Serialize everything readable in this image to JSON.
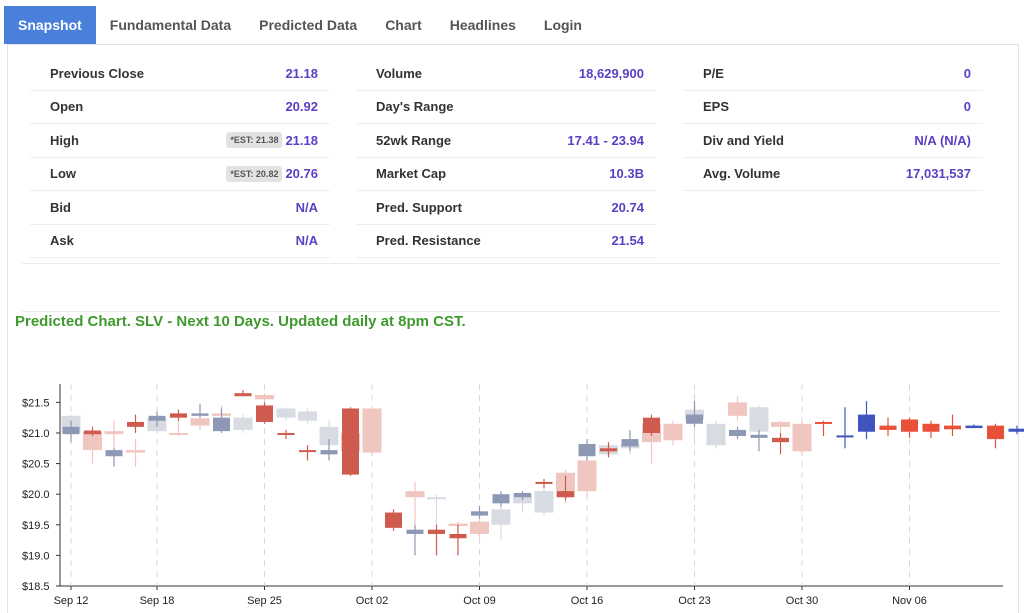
{
  "tabs": [
    {
      "label": "Snapshot",
      "active": true
    },
    {
      "label": "Fundamental Data"
    },
    {
      "label": "Predicted Data"
    },
    {
      "label": "Chart"
    },
    {
      "label": "Headlines"
    },
    {
      "label": "Login"
    }
  ],
  "snapshot": {
    "col1": [
      {
        "label": "Previous Close",
        "value": "21.18"
      },
      {
        "label": "Open",
        "value": "20.92"
      },
      {
        "label": "High",
        "est": "*EST: 21.38",
        "value": "21.18"
      },
      {
        "label": "Low",
        "est": "*EST: 20.82",
        "value": "20.76"
      },
      {
        "label": "Bid",
        "value": "N/A"
      },
      {
        "label": "Ask",
        "value": "N/A"
      }
    ],
    "col2": [
      {
        "label": "Volume",
        "value": "18,629,900"
      },
      {
        "label": "Day's Range",
        "value": ""
      },
      {
        "label": "52wk Range",
        "value": "17.41 - 23.94"
      },
      {
        "label": "Market Cap",
        "value": "10.3B"
      },
      {
        "label": "Pred. Support",
        "value": "20.74"
      },
      {
        "label": "Pred. Resistance",
        "value": "21.54"
      }
    ],
    "col3": [
      {
        "label": "P/E",
        "value": "0"
      },
      {
        "label": "EPS",
        "value": "0"
      },
      {
        "label": "Div and Yield",
        "value": "N/A (N/A)"
      },
      {
        "label": "Avg. Volume",
        "value": "17,031,537"
      }
    ]
  },
  "chart_title": "Predicted Chart. SLV - Next 10 Days. Updated daily at 8pm CST.",
  "colors": {
    "up_actual": "#8d99b4",
    "down_actual": "#cf5a4e",
    "up_light": "#d8dbe2",
    "down_light": "#f0c6c1",
    "up_pred": "#3f54bf",
    "down_pred": "#e8503a"
  },
  "chart_data": {
    "type": "candlestick",
    "ylim": [
      18.5,
      21.8
    ],
    "y_ticks": [
      "$18.5",
      "$19.0",
      "$19.5",
      "$20.0",
      "$20.5",
      "$21.0",
      "$21.5"
    ],
    "y_tick_values": [
      18.5,
      19.0,
      19.5,
      20.0,
      20.5,
      21.0,
      21.5
    ],
    "x_ticks": [
      {
        "label": "Sep 12",
        "index": 0
      },
      {
        "label": "Sep 18",
        "index": 4
      },
      {
        "label": "Sep 25",
        "index": 9
      },
      {
        "label": "Oct 02",
        "index": 14
      },
      {
        "label": "Oct 09",
        "index": 19
      },
      {
        "label": "Oct 16",
        "index": 24
      },
      {
        "label": "Oct 23",
        "index": 29
      },
      {
        "label": "Oct 30",
        "index": 34
      },
      {
        "label": "Nov 06",
        "index": 39
      }
    ],
    "n_slots": 43,
    "candles": [
      {
        "i": 0,
        "o": 20.98,
        "c": 21.1,
        "h": 21.2,
        "l": 20.85,
        "s": "up_actual"
      },
      {
        "i": 0,
        "o": 21.0,
        "c": 21.28,
        "h": 21.3,
        "l": 20.95,
        "s": "up_light"
      },
      {
        "i": 1,
        "o": 21.04,
        "c": 20.98,
        "h": 21.1,
        "l": 20.95,
        "s": "down_actual"
      },
      {
        "i": 1,
        "o": 21.02,
        "c": 20.72,
        "h": 21.05,
        "l": 20.5,
        "s": "down_light"
      },
      {
        "i": 2,
        "o": 20.62,
        "c": 20.72,
        "h": 20.75,
        "l": 20.45,
        "s": "up_actual"
      },
      {
        "i": 2,
        "o": 21.03,
        "c": 20.98,
        "h": 21.2,
        "l": 20.5,
        "s": "down_light"
      },
      {
        "i": 3,
        "o": 21.1,
        "c": 21.18,
        "h": 21.3,
        "l": 21.0,
        "s": "down_actual"
      },
      {
        "i": 3,
        "o": 20.72,
        "c": 20.68,
        "h": 20.9,
        "l": 20.45,
        "s": "down_light"
      },
      {
        "i": 4,
        "o": 21.2,
        "c": 21.28,
        "h": 21.35,
        "l": 21.1,
        "s": "up_actual"
      },
      {
        "i": 4,
        "o": 21.03,
        "c": 21.24,
        "h": 21.3,
        "l": 21.0,
        "s": "up_light"
      },
      {
        "i": 5,
        "o": 21.32,
        "c": 21.25,
        "h": 21.38,
        "l": 21.2,
        "s": "down_actual"
      },
      {
        "i": 5,
        "o": 21.0,
        "c": 21.0,
        "h": 21.3,
        "l": 20.95,
        "s": "down_light"
      },
      {
        "i": 6,
        "o": 21.28,
        "c": 21.32,
        "h": 21.48,
        "l": 21.25,
        "s": "up_actual"
      },
      {
        "i": 6,
        "o": 21.12,
        "c": 21.24,
        "h": 21.3,
        "l": 21.05,
        "s": "down_light"
      },
      {
        "i": 7,
        "o": 21.03,
        "c": 21.25,
        "h": 21.4,
        "l": 21.0,
        "s": "up_actual"
      },
      {
        "i": 7,
        "o": 21.32,
        "c": 21.28,
        "h": 21.45,
        "l": 21.25,
        "s": "down_light"
      },
      {
        "i": 8,
        "o": 21.6,
        "c": 21.65,
        "h": 21.7,
        "l": 21.6,
        "s": "down_actual"
      },
      {
        "i": 8,
        "o": 21.05,
        "c": 21.25,
        "h": 21.3,
        "l": 21.0,
        "s": "up_light"
      },
      {
        "i": 9,
        "o": 21.45,
        "c": 21.18,
        "h": 21.5,
        "l": 21.15,
        "s": "down_actual"
      },
      {
        "i": 9,
        "o": 21.55,
        "c": 21.62,
        "h": 21.65,
        "l": 21.5,
        "s": "down_light"
      },
      {
        "i": 10,
        "o": 20.98,
        "c": 21.0,
        "h": 21.05,
        "l": 20.9,
        "s": "down_actual"
      },
      {
        "i": 10,
        "o": 21.25,
        "c": 21.4,
        "h": 21.42,
        "l": 21.2,
        "s": "up_light"
      },
      {
        "i": 11,
        "o": 20.72,
        "c": 20.7,
        "h": 20.8,
        "l": 20.55,
        "s": "down_actual"
      },
      {
        "i": 11,
        "o": 21.2,
        "c": 21.35,
        "h": 21.4,
        "l": 21.15,
        "s": "up_light"
      },
      {
        "i": 12,
        "o": 20.65,
        "c": 20.72,
        "h": 20.9,
        "l": 20.55,
        "s": "up_actual"
      },
      {
        "i": 12,
        "o": 20.8,
        "c": 21.1,
        "h": 21.2,
        "l": 20.6,
        "s": "up_light"
      },
      {
        "i": 13,
        "o": 21.4,
        "c": 20.32,
        "h": 21.42,
        "l": 20.3,
        "s": "down_actual"
      },
      {
        "i": 13,
        "o": 21.0,
        "c": 20.7,
        "h": 21.3,
        "l": 20.6,
        "s": "down_light"
      },
      {
        "i": 14,
        "o": 21.4,
        "c": 20.68,
        "h": 21.42,
        "l": 20.65,
        "s": "down_light"
      },
      {
        "i": 15,
        "o": 19.7,
        "c": 19.45,
        "h": 19.75,
        "l": 19.4,
        "s": "down_actual"
      },
      {
        "i": 16,
        "o": 19.42,
        "c": 19.35,
        "h": 19.5,
        "l": 19.0,
        "s": "up_actual"
      },
      {
        "i": 16,
        "o": 20.05,
        "c": 19.95,
        "h": 20.2,
        "l": 19.4,
        "s": "down_light"
      },
      {
        "i": 17,
        "o": 19.42,
        "c": 19.35,
        "h": 19.5,
        "l": 19.0,
        "s": "down_actual"
      },
      {
        "i": 17,
        "o": 19.95,
        "c": 19.92,
        "h": 20.0,
        "l": 19.5,
        "s": "up_light"
      },
      {
        "i": 18,
        "o": 19.35,
        "c": 19.28,
        "h": 19.5,
        "l": 19.0,
        "s": "down_actual"
      },
      {
        "i": 18,
        "o": 19.52,
        "c": 19.48,
        "h": 19.55,
        "l": 19.4,
        "s": "down_light"
      },
      {
        "i": 19,
        "o": 19.65,
        "c": 19.72,
        "h": 19.8,
        "l": 19.6,
        "s": "up_actual"
      },
      {
        "i": 19,
        "o": 19.55,
        "c": 19.35,
        "h": 19.6,
        "l": 19.3,
        "s": "down_light"
      },
      {
        "i": 20,
        "o": 19.85,
        "c": 20.0,
        "h": 20.05,
        "l": 19.8,
        "s": "up_actual"
      },
      {
        "i": 20,
        "o": 19.5,
        "c": 19.75,
        "h": 19.8,
        "l": 19.25,
        "s": "up_light"
      },
      {
        "i": 21,
        "o": 19.95,
        "c": 20.02,
        "h": 20.05,
        "l": 19.9,
        "s": "up_actual"
      },
      {
        "i": 21,
        "o": 19.85,
        "c": 20.0,
        "h": 20.05,
        "l": 19.7,
        "s": "up_light"
      },
      {
        "i": 22,
        "o": 20.18,
        "c": 20.2,
        "h": 20.25,
        "l": 20.1,
        "s": "down_actual"
      },
      {
        "i": 22,
        "o": 19.7,
        "c": 20.05,
        "h": 20.1,
        "l": 19.65,
        "s": "up_light"
      },
      {
        "i": 23,
        "o": 20.05,
        "c": 19.95,
        "h": 20.3,
        "l": 19.9,
        "s": "down_actual"
      },
      {
        "i": 23,
        "o": 19.95,
        "c": 20.35,
        "h": 20.4,
        "l": 19.85,
        "s": "down_light"
      },
      {
        "i": 24,
        "o": 20.62,
        "c": 20.82,
        "h": 20.9,
        "l": 20.55,
        "s": "up_actual"
      },
      {
        "i": 24,
        "o": 20.05,
        "c": 20.55,
        "h": 20.6,
        "l": 19.95,
        "s": "down_light"
      },
      {
        "i": 25,
        "o": 20.75,
        "c": 20.7,
        "h": 20.85,
        "l": 20.6,
        "s": "down_actual"
      },
      {
        "i": 25,
        "o": 20.65,
        "c": 20.8,
        "h": 20.85,
        "l": 20.6,
        "s": "up_light"
      },
      {
        "i": 26,
        "o": 20.78,
        "c": 20.9,
        "h": 21.05,
        "l": 20.7,
        "s": "up_actual"
      },
      {
        "i": 26,
        "o": 20.75,
        "c": 20.82,
        "h": 20.85,
        "l": 20.65,
        "s": "up_light"
      },
      {
        "i": 27,
        "o": 21.25,
        "c": 21.0,
        "h": 21.3,
        "l": 20.95,
        "s": "down_actual"
      },
      {
        "i": 27,
        "o": 21.15,
        "c": 20.85,
        "h": 21.2,
        "l": 20.5,
        "s": "down_light"
      },
      {
        "i": 28,
        "o": 21.15,
        "c": 20.88,
        "h": 21.2,
        "l": 20.8,
        "s": "down_light"
      },
      {
        "i": 29,
        "o": 21.15,
        "c": 21.3,
        "h": 21.52,
        "l": 21.1,
        "s": "up_actual"
      },
      {
        "i": 29,
        "o": 21.38,
        "c": 21.22,
        "h": 21.65,
        "l": 20.9,
        "s": "up_light"
      },
      {
        "i": 30,
        "o": 20.8,
        "c": 21.15,
        "h": 21.2,
        "l": 20.75,
        "s": "up_light"
      },
      {
        "i": 31,
        "o": 21.05,
        "c": 20.95,
        "h": 21.1,
        "l": 20.9,
        "s": "up_actual"
      },
      {
        "i": 31,
        "o": 21.5,
        "c": 21.28,
        "h": 21.6,
        "l": 21.2,
        "s": "down_light"
      },
      {
        "i": 32,
        "o": 20.92,
        "c": 20.97,
        "h": 21.05,
        "l": 20.7,
        "s": "up_actual"
      },
      {
        "i": 32,
        "o": 21.02,
        "c": 21.42,
        "h": 21.45,
        "l": 21.0,
        "s": "up_light"
      },
      {
        "i": 33,
        "o": 20.92,
        "c": 20.85,
        "h": 21.0,
        "l": 20.65,
        "s": "down_actual"
      },
      {
        "i": 33,
        "o": 21.18,
        "c": 21.1,
        "h": 21.2,
        "l": 20.9,
        "s": "down_light"
      },
      {
        "i": 34,
        "o": 21.15,
        "c": 20.7,
        "h": 21.2,
        "l": 20.65,
        "s": "down_light"
      },
      {
        "i": 35,
        "o": 21.18,
        "c": 21.15,
        "h": 21.2,
        "l": 20.95,
        "s": "down_pred"
      },
      {
        "i": 36,
        "o": 20.93,
        "c": 20.96,
        "h": 21.42,
        "l": 20.75,
        "s": "up_pred"
      },
      {
        "i": 37,
        "o": 21.02,
        "c": 21.3,
        "h": 21.52,
        "l": 20.9,
        "s": "up_pred"
      },
      {
        "i": 38,
        "o": 21.12,
        "c": 21.05,
        "h": 21.25,
        "l": 20.95,
        "s": "down_pred"
      },
      {
        "i": 39,
        "o": 21.22,
        "c": 21.02,
        "h": 21.25,
        "l": 20.92,
        "s": "down_pred"
      },
      {
        "i": 40,
        "o": 21.15,
        "c": 21.02,
        "h": 21.2,
        "l": 20.92,
        "s": "down_pred"
      },
      {
        "i": 41,
        "o": 21.12,
        "c": 21.06,
        "h": 21.3,
        "l": 20.95,
        "s": "down_pred"
      },
      {
        "i": 42,
        "o": 21.08,
        "c": 21.12,
        "h": 21.14,
        "l": 21.08,
        "s": "up_pred"
      },
      {
        "i": 43,
        "o": 21.12,
        "c": 20.9,
        "h": 21.15,
        "l": 20.75,
        "s": "down_pred"
      },
      {
        "i": 44,
        "o": 21.02,
        "c": 21.07,
        "h": 21.12,
        "l": 20.98,
        "s": "up_pred"
      }
    ]
  }
}
